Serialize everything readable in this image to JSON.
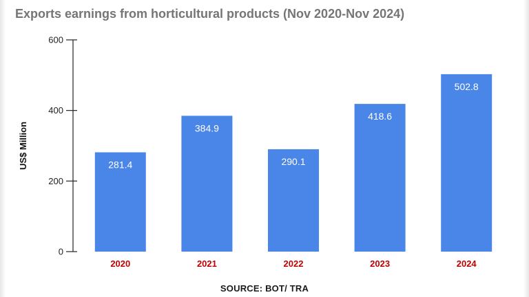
{
  "chart_data": {
    "type": "bar",
    "title": "Exports earnings from horticultural products (Nov 2020-Nov 2024)",
    "ylabel": "US$ Million",
    "xlabel": "",
    "source": "SOURCE: BOT/ TRA",
    "categories": [
      "2020",
      "2021",
      "2022",
      "2023",
      "2024"
    ],
    "values": [
      281.4,
      384.9,
      290.1,
      418.6,
      502.8
    ],
    "value_labels": [
      "281.4",
      "384.9",
      "290.1",
      "418.6",
      "502.8"
    ],
    "ylim": [
      0,
      600
    ],
    "yticks": [
      0,
      200,
      400,
      600
    ],
    "ytick_labels": [
      "0",
      "200",
      "400",
      "600"
    ],
    "grid": false,
    "legend": "none",
    "colors": {
      "bar": "#4a86e8",
      "category_label": "#c00000",
      "axis": "#222222"
    }
  }
}
